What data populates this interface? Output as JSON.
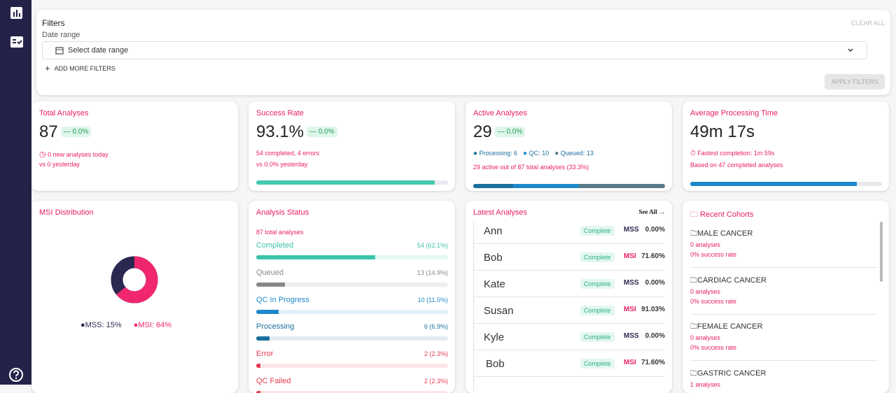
{
  "filters": {
    "title": "Filters",
    "clear": "CLEAR ALL",
    "date_label": "Date range",
    "date_placeholder": "Select date range",
    "add_more": "ADD MORE FILTERS",
    "apply": "APPLY FILTERS"
  },
  "kpis": {
    "total": {
      "title": "Total Analyses",
      "value": "87",
      "change": "— 0.0%",
      "line1": "0 new analyses today",
      "line2": "vs 0 yesterday"
    },
    "success": {
      "title": "Success Rate",
      "value": "93.1%",
      "change": "— 0.0%",
      "line1": "54 completed, 4 errors",
      "line2": "vs 0.0% yesterday",
      "progress": 93.1
    },
    "active": {
      "title": "Active Analyses",
      "value": "29",
      "change": "— 0.0%",
      "legend": [
        {
          "label": "Processing:",
          "count": 6,
          "color": "#1b6f9c"
        },
        {
          "label": "QC:",
          "count": 10,
          "color": "#1e88c8"
        },
        {
          "label": "Queued:",
          "count": 13,
          "color": "#587a89"
        }
      ],
      "line2": "29 active out of 87 total analyses (33.3%)"
    },
    "time": {
      "title": "Average Processing Time",
      "value": "49m 17s",
      "line1": "Fastest completion: 1m 59s",
      "line2": "Based on 47 completed analyses"
    }
  },
  "msi": {
    "title": "MSI Distribution",
    "legend": [
      "MSS: 15%",
      "MSI: 64%"
    ]
  },
  "status": {
    "title": "Analysis Status",
    "total": "87 total analyses",
    "rows": [
      {
        "name": "Completed",
        "label": "54 (62.1%)",
        "percent": 62.1,
        "color": "#3cc4a8"
      },
      {
        "name": "Queued",
        "label": "13 (14.9%)",
        "percent": 14.9,
        "color": "#888888"
      },
      {
        "name": "QC In Progress",
        "label": "10 (11.5%)",
        "percent": 11.5,
        "color": "#1e88c8"
      },
      {
        "name": "Processing",
        "label": "6 (6.9%)",
        "percent": 6.9,
        "color": "#1b6f9c"
      },
      {
        "name": "Error",
        "label": "2 (2.3%)",
        "percent": 2.3,
        "color": "#e53950"
      },
      {
        "name": "QC Failed",
        "label": "2 (2.3%)",
        "percent": 2.3,
        "color": "#e53950"
      }
    ]
  },
  "latest": {
    "title": "Latest Analyses",
    "see_all": "See All",
    "rows": [
      {
        "name": "Ann",
        "status": "Complete",
        "msi": "MSS",
        "score": "0.00%"
      },
      {
        "name": "Bob",
        "status": "Complete",
        "msi": "MSI",
        "score": "71.60%"
      },
      {
        "name": "Kate",
        "status": "Complete",
        "msi": "MSS",
        "score": "0.00%"
      },
      {
        "name": "Susan",
        "status": "Complete",
        "msi": "MSI",
        "score": "91.03%"
      },
      {
        "name": "Kyle",
        "status": "Complete",
        "msi": "MSS",
        "score": "0.00%"
      },
      {
        "name": "Bob",
        "status": "Complete",
        "msi": "MSI",
        "score": "71.60%"
      }
    ]
  },
  "cohorts": {
    "title": "Recent Cohorts",
    "items": [
      {
        "name": "MALE CANCER",
        "analyses": "0 analyses",
        "success": "0% success rate"
      },
      {
        "name": "CARDIAC CANCER",
        "analyses": "0 analyses",
        "success": "0% success rate"
      },
      {
        "name": "FEMALE CANCER",
        "analyses": "0 analyses",
        "success": "0% success rate"
      },
      {
        "name": "GASTRIC CANCER",
        "analyses": "1 analyses"
      }
    ]
  }
}
